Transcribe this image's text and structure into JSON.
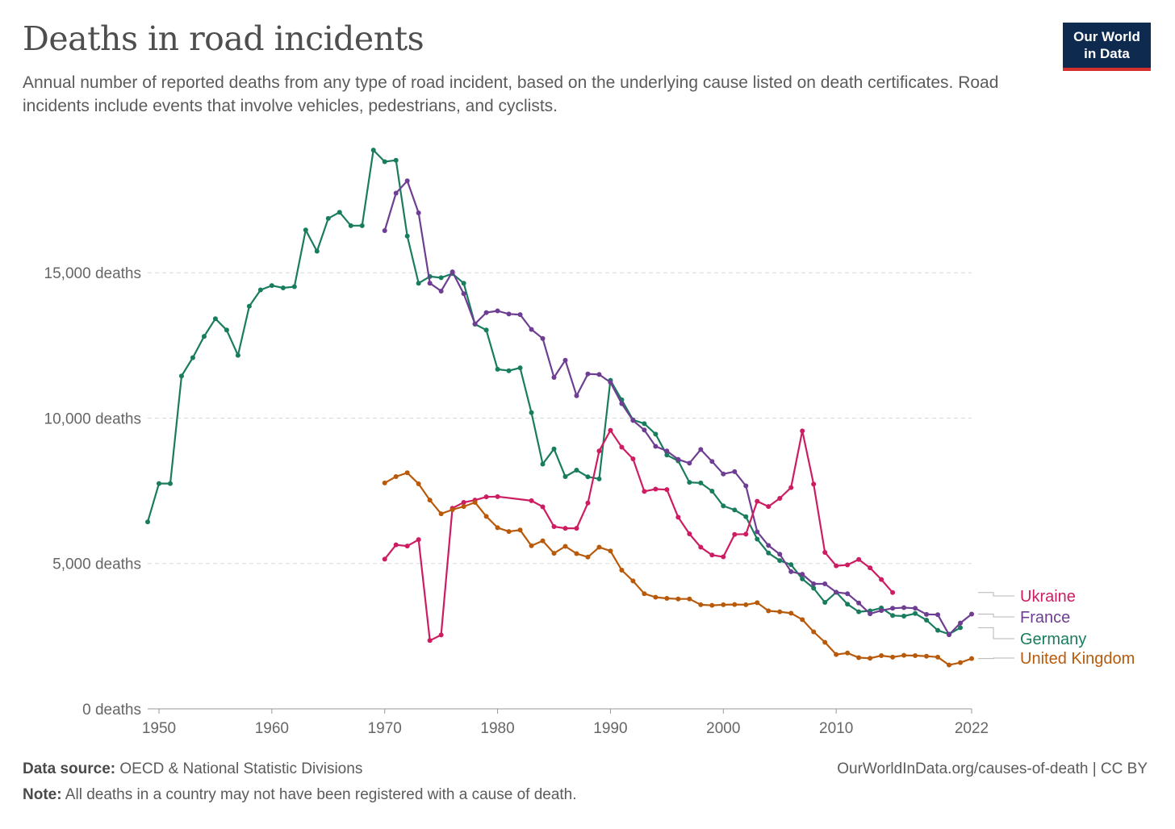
{
  "header": {
    "title": "Deaths in road incidents",
    "subtitle": "Annual number of reported deaths from any type of road incident, based on the underlying cause listed on death certificates. Road incidents include events that involve vehicles, pedestrians, and cyclists.",
    "logo_line1": "Our World",
    "logo_line2": "in Data"
  },
  "footer": {
    "source_label": "Data source:",
    "source_text": "OECD & National Statistic Divisions",
    "note_label": "Note:",
    "note_text": "All deaths in a country may not have been registered with a cause of death.",
    "url": "OurWorldInData.org/causes-of-death | CC BY"
  },
  "chart_data": {
    "type": "line",
    "title": "Deaths in road incidents",
    "xlabel": "",
    "ylabel": "",
    "xlim": [
      1949,
      2022
    ],
    "ylim": [
      0,
      19500
    ],
    "x_ticks": [
      {
        "value": 1950,
        "label": "1950"
      },
      {
        "value": 1960,
        "label": "1960"
      },
      {
        "value": 1970,
        "label": "1970"
      },
      {
        "value": 1980,
        "label": "1980"
      },
      {
        "value": 1990,
        "label": "1990"
      },
      {
        "value": 2000,
        "label": "2000"
      },
      {
        "value": 2010,
        "label": "2010"
      },
      {
        "value": 2022,
        "label": "2022"
      }
    ],
    "y_ticks": [
      {
        "value": 0,
        "label": "0 deaths"
      },
      {
        "value": 5000,
        "label": "5,000 deaths"
      },
      {
        "value": 10000,
        "label": "10,000 deaths"
      },
      {
        "value": 15000,
        "label": "15,000 deaths"
      }
    ],
    "grid": "horizontal dashed",
    "legend": "right, labels at line ends",
    "series": [
      {
        "name": "Germany",
        "color": "#1a7c5e",
        "points": [
          [
            1949,
            6430
          ],
          [
            1950,
            7750
          ],
          [
            1951,
            7750
          ],
          [
            1952,
            11450
          ],
          [
            1953,
            12080
          ],
          [
            1954,
            12810
          ],
          [
            1955,
            13420
          ],
          [
            1956,
            13030
          ],
          [
            1957,
            12160
          ],
          [
            1958,
            13850
          ],
          [
            1959,
            14410
          ],
          [
            1960,
            14560
          ],
          [
            1961,
            14480
          ],
          [
            1962,
            14520
          ],
          [
            1963,
            16470
          ],
          [
            1964,
            15740
          ],
          [
            1965,
            16870
          ],
          [
            1966,
            17080
          ],
          [
            1967,
            16620
          ],
          [
            1968,
            16620
          ],
          [
            1969,
            19220
          ],
          [
            1970,
            18820
          ],
          [
            1971,
            18870
          ],
          [
            1972,
            16260
          ],
          [
            1973,
            14640
          ],
          [
            1974,
            14870
          ],
          [
            1975,
            14830
          ],
          [
            1976,
            14970
          ],
          [
            1977,
            14640
          ],
          [
            1978,
            13230
          ],
          [
            1979,
            13030
          ],
          [
            1980,
            11680
          ],
          [
            1981,
            11630
          ],
          [
            1982,
            11730
          ],
          [
            1983,
            10190
          ],
          [
            1984,
            8420
          ],
          [
            1985,
            8940
          ],
          [
            1986,
            7990
          ],
          [
            1987,
            8210
          ],
          [
            1988,
            7980
          ],
          [
            1989,
            7910
          ],
          [
            1990,
            11300
          ],
          [
            1991,
            10630
          ],
          [
            1992,
            9940
          ],
          [
            1993,
            9810
          ],
          [
            1994,
            9450
          ],
          [
            1995,
            8730
          ],
          [
            1996,
            8530
          ],
          [
            1997,
            7790
          ],
          [
            1998,
            7770
          ],
          [
            1999,
            7490
          ],
          [
            2000,
            6980
          ],
          [
            2001,
            6840
          ],
          [
            2002,
            6610
          ],
          [
            2003,
            5840
          ],
          [
            2004,
            5360
          ],
          [
            2005,
            5100
          ],
          [
            2006,
            4960
          ],
          [
            2007,
            4470
          ],
          [
            2008,
            4150
          ],
          [
            2009,
            3660
          ],
          [
            2010,
            4010
          ],
          [
            2011,
            3600
          ],
          [
            2012,
            3340
          ],
          [
            2013,
            3370
          ],
          [
            2014,
            3470
          ],
          [
            2015,
            3210
          ],
          [
            2016,
            3190
          ],
          [
            2017,
            3280
          ],
          [
            2018,
            3050
          ],
          [
            2019,
            2700
          ],
          [
            2020,
            2570
          ],
          [
            2021,
            2790
          ]
        ]
      },
      {
        "name": "France",
        "color": "#6d3e91",
        "points": [
          [
            1970,
            16450
          ],
          [
            1971,
            17740
          ],
          [
            1972,
            18160
          ],
          [
            1973,
            17060
          ],
          [
            1974,
            14640
          ],
          [
            1975,
            14370
          ],
          [
            1976,
            15030
          ],
          [
            1977,
            14280
          ],
          [
            1978,
            13240
          ],
          [
            1979,
            13630
          ],
          [
            1980,
            13690
          ],
          [
            1981,
            13580
          ],
          [
            1982,
            13560
          ],
          [
            1983,
            13050
          ],
          [
            1984,
            12740
          ],
          [
            1985,
            11400
          ],
          [
            1986,
            11990
          ],
          [
            1987,
            10770
          ],
          [
            1988,
            11520
          ],
          [
            1989,
            11500
          ],
          [
            1990,
            11230
          ],
          [
            1991,
            10500
          ],
          [
            1992,
            9920
          ],
          [
            1993,
            9590
          ],
          [
            1994,
            9030
          ],
          [
            1995,
            8870
          ],
          [
            1996,
            8580
          ],
          [
            1997,
            8450
          ],
          [
            1998,
            8920
          ],
          [
            1999,
            8510
          ],
          [
            2000,
            8080
          ],
          [
            2001,
            8160
          ],
          [
            2002,
            7670
          ],
          [
            2003,
            6090
          ],
          [
            2004,
            5620
          ],
          [
            2005,
            5320
          ],
          [
            2006,
            4720
          ],
          [
            2007,
            4630
          ],
          [
            2008,
            4300
          ],
          [
            2009,
            4300
          ],
          [
            2010,
            4010
          ],
          [
            2011,
            3960
          ],
          [
            2012,
            3640
          ],
          [
            2013,
            3270
          ],
          [
            2014,
            3380
          ],
          [
            2015,
            3460
          ],
          [
            2016,
            3480
          ],
          [
            2017,
            3460
          ],
          [
            2018,
            3250
          ],
          [
            2019,
            3240
          ],
          [
            2020,
            2550
          ],
          [
            2021,
            2950
          ],
          [
            2022,
            3260
          ]
        ]
      },
      {
        "name": "Ukraine",
        "color": "#cc1d62",
        "points": [
          [
            1970,
            5150
          ],
          [
            1971,
            5640
          ],
          [
            1972,
            5600
          ],
          [
            1973,
            5820
          ],
          [
            1974,
            2350
          ],
          [
            1975,
            2540
          ],
          [
            1976,
            6900
          ],
          [
            1977,
            7100
          ],
          [
            1978,
            7180
          ],
          [
            1979,
            7290
          ],
          [
            1980,
            7300
          ],
          [
            1983,
            7160
          ],
          [
            1984,
            6950
          ],
          [
            1985,
            6270
          ],
          [
            1986,
            6210
          ],
          [
            1987,
            6210
          ],
          [
            1988,
            7080
          ],
          [
            1989,
            8870
          ],
          [
            1990,
            9580
          ],
          [
            1991,
            9000
          ],
          [
            1992,
            8600
          ],
          [
            1993,
            7480
          ],
          [
            1994,
            7560
          ],
          [
            1995,
            7540
          ],
          [
            1996,
            6590
          ],
          [
            1997,
            6020
          ],
          [
            1998,
            5560
          ],
          [
            1999,
            5290
          ],
          [
            2000,
            5230
          ],
          [
            2001,
            6000
          ],
          [
            2002,
            6010
          ],
          [
            2003,
            7140
          ],
          [
            2004,
            6960
          ],
          [
            2005,
            7240
          ],
          [
            2006,
            7610
          ],
          [
            2007,
            9560
          ],
          [
            2008,
            7730
          ],
          [
            2009,
            5380
          ],
          [
            2010,
            4920
          ],
          [
            2011,
            4950
          ],
          [
            2012,
            5140
          ],
          [
            2013,
            4850
          ],
          [
            2014,
            4450
          ],
          [
            2015,
            4000
          ]
        ]
      },
      {
        "name": "United Kingdom",
        "color": "#b85a0b",
        "points": [
          [
            1970,
            7770
          ],
          [
            1971,
            7990
          ],
          [
            1972,
            8120
          ],
          [
            1973,
            7740
          ],
          [
            1974,
            7180
          ],
          [
            1975,
            6710
          ],
          [
            1976,
            6850
          ],
          [
            1977,
            6960
          ],
          [
            1978,
            7100
          ],
          [
            1979,
            6620
          ],
          [
            1980,
            6230
          ],
          [
            1981,
            6100
          ],
          [
            1982,
            6150
          ],
          [
            1983,
            5610
          ],
          [
            1984,
            5780
          ],
          [
            1985,
            5350
          ],
          [
            1986,
            5590
          ],
          [
            1987,
            5340
          ],
          [
            1988,
            5220
          ],
          [
            1989,
            5560
          ],
          [
            1990,
            5430
          ],
          [
            1991,
            4770
          ],
          [
            1992,
            4400
          ],
          [
            1993,
            3960
          ],
          [
            1994,
            3840
          ],
          [
            1995,
            3800
          ],
          [
            1996,
            3780
          ],
          [
            1997,
            3780
          ],
          [
            1998,
            3580
          ],
          [
            1999,
            3560
          ],
          [
            2000,
            3580
          ],
          [
            2001,
            3590
          ],
          [
            2002,
            3580
          ],
          [
            2003,
            3650
          ],
          [
            2004,
            3370
          ],
          [
            2005,
            3340
          ],
          [
            2006,
            3290
          ],
          [
            2007,
            3070
          ],
          [
            2008,
            2650
          ],
          [
            2009,
            2290
          ],
          [
            2010,
            1870
          ],
          [
            2011,
            1920
          ],
          [
            2012,
            1760
          ],
          [
            2013,
            1740
          ],
          [
            2014,
            1830
          ],
          [
            2015,
            1780
          ],
          [
            2016,
            1840
          ],
          [
            2017,
            1830
          ],
          [
            2018,
            1810
          ],
          [
            2019,
            1780
          ],
          [
            2020,
            1510
          ],
          [
            2021,
            1590
          ],
          [
            2022,
            1730
          ]
        ]
      }
    ]
  }
}
